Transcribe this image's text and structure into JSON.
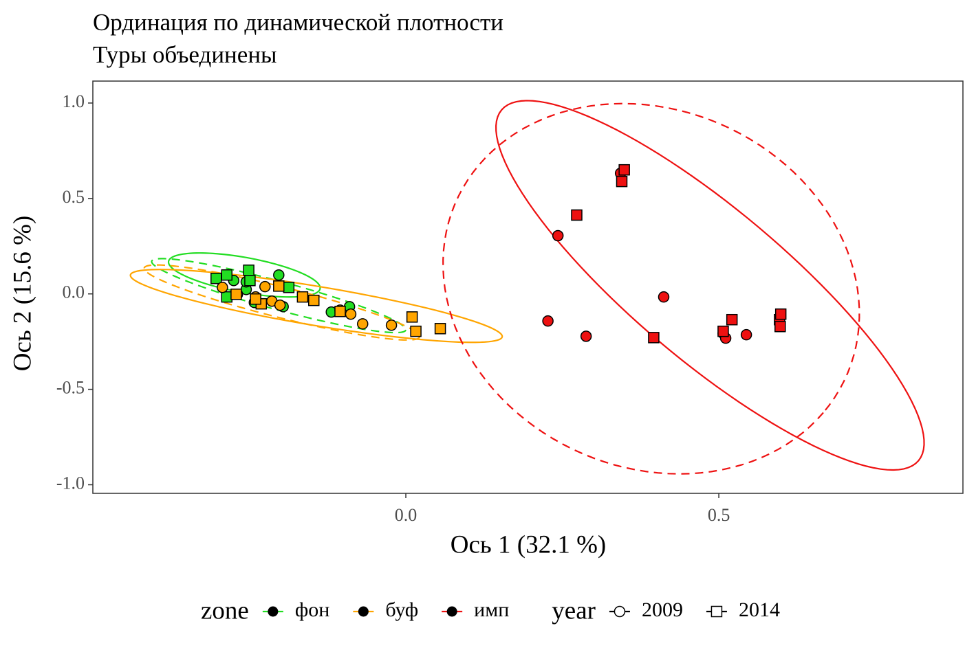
{
  "chart_data": {
    "type": "scatter",
    "title": "Ординация по динамической плотности",
    "subtitle": "Туры объединены",
    "x_label": "Ось 1 (32.1 %)",
    "y_label": "Ось 2 (15.6 %)",
    "xlim": [
      -0.5,
      0.89
    ],
    "ylim": [
      -1.045,
      1.115
    ],
    "xticks": [
      {
        "value": 0,
        "label": "0.0"
      },
      0.5
    ],
    "yticks": [
      {
        "value": -1,
        "label": "-1.0"
      },
      -0.5,
      {
        "value": 0,
        "label": "0.0"
      },
      0.5,
      {
        "value": 1,
        "label": "1.0"
      }
    ],
    "grid": false,
    "legend_position": "bottom",
    "zone_legend": {
      "title": "zone",
      "items": [
        {
          "name": "фон",
          "color": "#22dd22"
        },
        {
          "name": "буф",
          "color": "#ffa500"
        },
        {
          "name": "имп",
          "color": "#ee1111"
        }
      ]
    },
    "year_legend": {
      "title": "year",
      "items": [
        {
          "name": "2009",
          "shape": "circle",
          "linetype": "dashed"
        },
        {
          "name": "2014",
          "shape": "square",
          "linetype": "solid"
        }
      ]
    },
    "series": [
      {
        "zone": "фон",
        "year": "2009",
        "x": [
          -0.275,
          -0.255,
          -0.242,
          -0.203,
          -0.196,
          -0.119,
          -0.09,
          -0.255
        ],
        "y": [
          0.07,
          0.023,
          -0.045,
          0.099,
          -0.067,
          -0.095,
          -0.067,
          0.063
        ],
        "ellipse": {
          "center": [
            -0.203,
            -0.009
          ],
          "a": [
            0.203,
            -0.18
          ],
          "b": [
            -0.0055,
            -0.072
          ]
        }
      },
      {
        "zone": "фон",
        "year": "2014",
        "x": [
          -0.303,
          -0.286,
          -0.251,
          -0.249,
          -0.187,
          -0.286
        ],
        "y": [
          0.081,
          0.099,
          0.124,
          0.07,
          0.034,
          -0.016
        ],
        "ellipse": {
          "center": [
            -0.258,
            0.099
          ],
          "a": [
            0.121,
            -0.072
          ],
          "b": [
            -0.0055,
            -0.09
          ]
        }
      },
      {
        "zone": "буф",
        "year": "2009",
        "x": [
          -0.293,
          -0.225,
          -0.214,
          -0.201,
          -0.105,
          -0.088,
          -0.069,
          -0.023,
          -0.269,
          -0.24
        ],
        "y": [
          0.034,
          0.038,
          -0.038,
          -0.059,
          -0.085,
          -0.106,
          -0.157,
          -0.164,
          -0.002,
          -0.016
        ],
        "ellipse": {
          "center": [
            -0.198,
            -0.045
          ],
          "a": [
            0.22,
            -0.18
          ],
          "b": [
            -0.0044,
            -0.079
          ]
        }
      },
      {
        "zone": "буф",
        "year": "2014",
        "x": [
          -0.271,
          -0.231,
          -0.203,
          -0.165,
          -0.147,
          -0.105,
          0.01,
          0.016,
          0.055,
          -0.24
        ],
        "y": [
          -0.002,
          -0.052,
          0.041,
          -0.016,
          -0.034,
          -0.092,
          -0.121,
          -0.196,
          -0.182,
          -0.027
        ],
        "ellipse": {
          "center": [
            -0.143,
            -0.063
          ],
          "a": [
            0.297,
            -0.162
          ],
          "b": [
            -0.0055,
            -0.101
          ]
        }
      },
      {
        "zone": "имп",
        "year": "2009",
        "x": [
          0.227,
          0.243,
          0.288,
          0.343,
          0.412,
          0.507,
          0.511,
          0.544
        ],
        "y": [
          -0.142,
          0.305,
          -0.222,
          0.632,
          -0.016,
          -0.207,
          -0.232,
          -0.214
        ],
        "ellipse": {
          "center": [
            0.392,
            0.027
          ],
          "a": [
            0.275,
            -0.649
          ],
          "b": [
            -0.187,
            -0.721
          ]
        }
      },
      {
        "zone": "имп",
        "year": "2014",
        "x": [
          0.273,
          0.345,
          0.349,
          0.396,
          0.521,
          0.507,
          0.597,
          0.599,
          0.598
        ],
        "y": [
          0.413,
          0.589,
          0.65,
          -0.229,
          -0.135,
          -0.196,
          -0.135,
          -0.106,
          -0.171
        ],
        "ellipse": {
          "center": [
            0.486,
            0.045
          ],
          "a": [
            0.333,
            -0.919
          ],
          "b": [
            -0.078,
            -0.303
          ]
        }
      }
    ]
  }
}
